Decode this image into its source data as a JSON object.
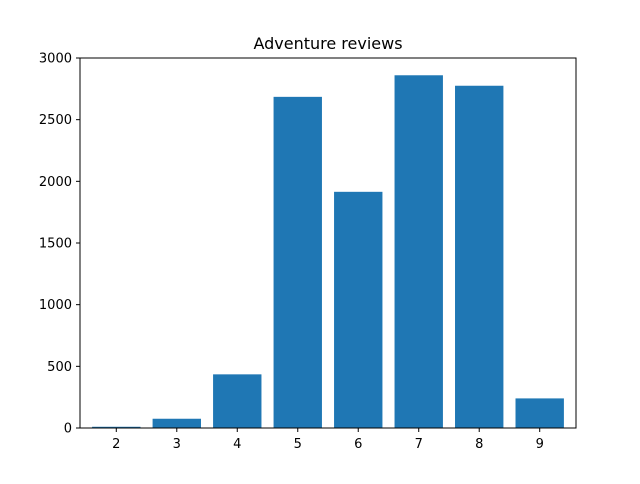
{
  "chart_data": {
    "type": "bar",
    "title": "Adventure reviews",
    "xlabel": "",
    "ylabel": "",
    "categories": [
      "2",
      "3",
      "4",
      "5",
      "6",
      "7",
      "8",
      "9"
    ],
    "values": [
      10,
      75,
      435,
      2685,
      1915,
      2860,
      2775,
      240
    ],
    "ylim": [
      0,
      3000
    ],
    "yticks": [
      "0",
      "500",
      "1000",
      "1500",
      "2000",
      "2500",
      "3000"
    ],
    "grid": false,
    "bar_color": "#1f77b4"
  }
}
